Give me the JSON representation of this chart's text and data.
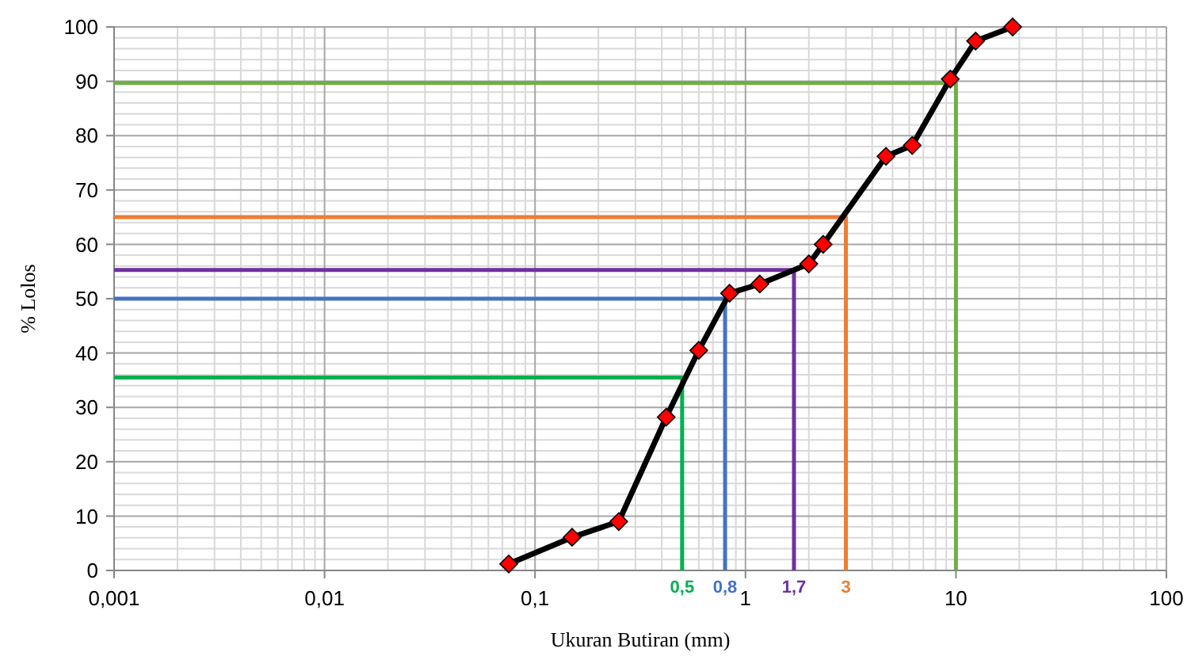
{
  "chart_data": {
    "type": "line",
    "xlabel": "Ukuran Butiran (mm)",
    "ylabel": "% Lolos",
    "log": "x",
    "grid": true,
    "marker": "diamond",
    "line_style": "solid",
    "xlim": [
      0.001,
      100
    ],
    "xticks": [
      {
        "value": 0.001,
        "label": "0,001"
      },
      {
        "value": 0.01,
        "label": "0,01"
      },
      {
        "value": 0.1,
        "label": "0,1"
      },
      1,
      10,
      100
    ],
    "ylim": [
      0,
      100
    ],
    "yticks": [
      0,
      10,
      20,
      30,
      40,
      50,
      60,
      70,
      80,
      90,
      100
    ],
    "series": [
      {
        "marker": "none",
        "color": "#70ad47",
        "x": [
          0.001,
          10,
          10
        ],
        "values": [
          89.7,
          89.7,
          0
        ]
      },
      {
        "marker": "none",
        "color": "#ed7d31",
        "x": [
          0.001,
          3,
          3
        ],
        "values": [
          65,
          65,
          0
        ]
      },
      {
        "marker": "none",
        "color": "#7030a0",
        "x": [
          0.001,
          1.7,
          1.7
        ],
        "values": [
          55.3,
          55.3,
          0
        ]
      },
      {
        "marker": "none",
        "color": "#4472c4",
        "x": [
          0.001,
          0.8,
          0.8
        ],
        "values": [
          50,
          50,
          0
        ]
      },
      {
        "marker": "none",
        "color": "#00b050",
        "x": [
          0.001,
          0.5,
          0.5
        ],
        "values": [
          35.5,
          35.5,
          0
        ]
      },
      {
        "color": "#ff0000",
        "x": [
          0.075,
          0.15,
          0.25,
          0.42,
          0.6,
          0.84,
          1.17,
          2,
          2.34,
          4.65,
          6.2,
          9.4,
          12.4,
          18.6
        ],
        "values": [
          1.2,
          6.1,
          9,
          28.2,
          40.5,
          51,
          52.7,
          56.4,
          60,
          76.2,
          78.2,
          90.4,
          97.4,
          100
        ]
      }
    ],
    "annotations": [
      {
        "text": "0,5",
        "x": 0.5,
        "y": 0
      },
      {
        "text": "0,8",
        "x": 0.8,
        "y": 0
      },
      {
        "text": "1,7",
        "x": 1.7,
        "y": 0
      },
      {
        "text": "3",
        "x": 3,
        "y": 0
      }
    ]
  }
}
